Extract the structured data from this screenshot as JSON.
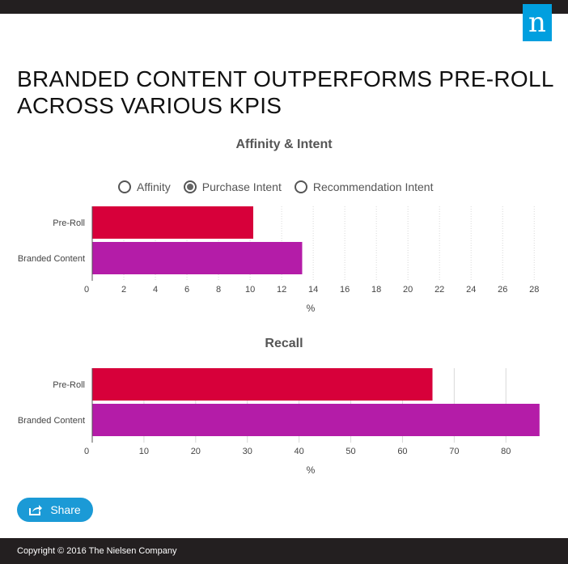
{
  "header": {
    "logo_text": "n",
    "title": "BRANDED CONTENT OUTPERFORMS PRE-ROLL\nACROSS VARIOUS KPIS"
  },
  "colors": {
    "pre_roll": "#d7003a",
    "branded_content": "#b41ca8",
    "brand_blue": "#009fdf",
    "bar_dark": "#231f20"
  },
  "radio_options": [
    {
      "label": "Affinity",
      "selected": false
    },
    {
      "label": "Purchase Intent",
      "selected": true
    },
    {
      "label": "Recommendation Intent",
      "selected": false
    }
  ],
  "chart_data": [
    {
      "type": "bar",
      "orientation": "horizontal",
      "title": "Affinity & Intent",
      "categories": [
        "Pre-Roll",
        "Branded Content"
      ],
      "values": [
        10.2,
        13.3
      ],
      "xlabel": "%",
      "xlim": [
        0,
        28.5
      ],
      "ticks": [
        0,
        2,
        4,
        6,
        8,
        10,
        12,
        14,
        16,
        18,
        20,
        22,
        24,
        26,
        28
      ],
      "grid": true
    },
    {
      "type": "bar",
      "orientation": "horizontal",
      "title": "Recall",
      "categories": [
        "Pre-Roll",
        "Branded Content"
      ],
      "values": [
        65.8,
        86.5
      ],
      "xlabel": "%",
      "xlim": [
        0,
        87
      ],
      "ticks": [
        0,
        10,
        20,
        30,
        40,
        50,
        60,
        70,
        80
      ],
      "grid": true
    }
  ],
  "share": {
    "label": "Share"
  },
  "footer": {
    "copyright": "Copyright © 2016 The Nielsen Company"
  }
}
